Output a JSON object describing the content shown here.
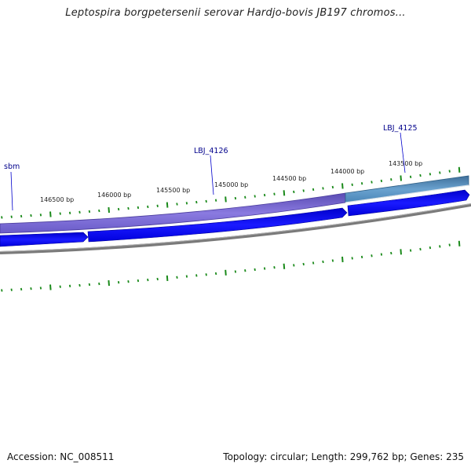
{
  "title": "Leptospira borgpetersenii serovar Hardjo-bovis JB197 chromos...",
  "footer": {
    "accession": "Accession: NC_008511",
    "summary": "Topology: circular; Length: 299,762 bp; Genes: 235"
  },
  "genome": {
    "accession": "NC_008511",
    "topology": "circular",
    "length_bp": 299762,
    "gene_count": 235
  },
  "ruler_labels": [
    "146500 bp",
    "146000 bp",
    "145500 bp",
    "145000 bp",
    "144500 bp",
    "144000 bp",
    "143500 bp"
  ],
  "gene_labels": [
    "sbm",
    "LBJ_4126",
    "LBJ_4125"
  ],
  "colors": {
    "background": "#ffffff",
    "tick": "#1a8a1a",
    "gene_label": "#00008b",
    "orf_block": "#0000ee",
    "backbone": "#808080",
    "feature_purple": "#6f5fcf",
    "feature_steelblue": "#4a86b8"
  }
}
